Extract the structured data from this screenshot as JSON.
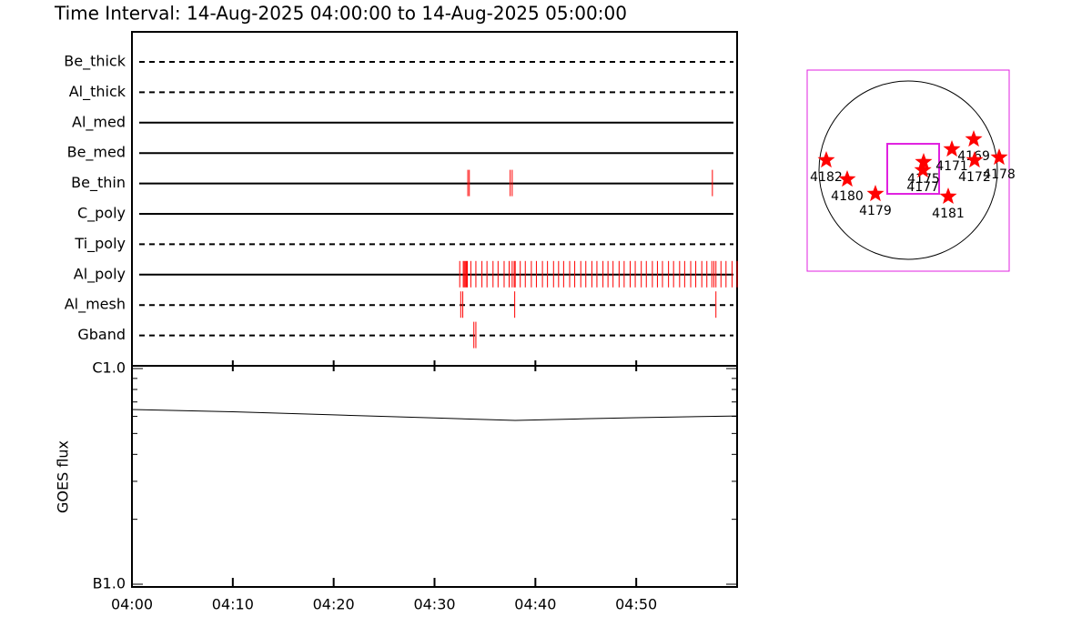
{
  "title": "Time Interval: 14-Aug-2025 04:00:00 to 14-Aug-2025 05:00:00",
  "chart_data": [
    {
      "type": "timeline",
      "categories": [
        "Be_thick",
        "Al_thick",
        "Al_med",
        "Be_med",
        "Be_thin",
        "C_poly",
        "Ti_poly",
        "Al_poly",
        "Al_mesh",
        "Gband"
      ],
      "line_styles": [
        "dashed",
        "dashed",
        "solid",
        "solid",
        "solid",
        "solid",
        "dashed",
        "solid",
        "dashed",
        "dashed"
      ],
      "color": "#ff0000",
      "xlim": [
        0,
        60
      ],
      "events": [
        [],
        [],
        [],
        [],
        [
          33.3,
          33.45,
          37.5,
          37.7,
          57.55
        ],
        [],
        [],
        [
          32.5,
          32.85,
          32.95,
          33.05,
          33.15,
          33.25,
          33.6,
          34.1,
          34.7,
          35.2,
          35.8,
          36.3,
          36.9,
          37.4,
          37.7,
          37.9,
          38.0,
          38.5,
          39.0,
          39.6,
          40.1,
          40.7,
          41.2,
          41.8,
          42.3,
          42.8,
          43.4,
          43.9,
          44.5,
          45.0,
          45.6,
          46.1,
          46.7,
          47.2,
          47.7,
          48.3,
          48.8,
          49.4,
          49.9,
          50.5,
          51.0,
          51.6,
          52.1,
          52.6,
          53.2,
          53.7,
          54.3,
          54.8,
          55.4,
          55.9,
          56.5,
          57.0,
          57.5,
          57.7,
          57.9,
          58.4,
          58.9,
          59.5,
          60.0
        ],
        [
          32.6,
          32.8,
          37.95,
          57.9
        ],
        [
          33.9,
          34.1
        ]
      ]
    },
    {
      "type": "line",
      "y_label": "GOES flux",
      "log_scale": true,
      "xlim": [
        0,
        60
      ],
      "xticks": [
        {
          "value": 0,
          "label": "04:00"
        },
        {
          "value": 10,
          "label": "04:10"
        },
        {
          "value": 20,
          "label": "04:20"
        },
        {
          "value": 30,
          "label": "04:30"
        },
        {
          "value": 40,
          "label": "04:40"
        },
        {
          "value": 50,
          "label": "04:50"
        }
      ],
      "ylim": [
        1e-07,
        1e-06
      ],
      "yticks": [
        {
          "value": 1e-07,
          "label": "B1.0"
        },
        {
          "value": 1e-06,
          "label": "C1.0"
        }
      ],
      "yminorticks": [
        2e-07,
        3e-07,
        4e-07,
        5e-07,
        6e-07,
        7e-07,
        8e-07,
        9e-07
      ],
      "color": "#000000",
      "x": [
        0,
        10,
        20,
        30,
        38,
        45,
        50,
        60
      ],
      "values": [
        6.46e-07,
        6.3e-07,
        6.1e-07,
        5.9e-07,
        5.75e-07,
        5.85e-07,
        5.92e-07,
        6.03e-07
      ]
    },
    {
      "type": "map",
      "xlim": [
        -1100,
        1100
      ],
      "ylim": [
        -1100,
        1100
      ],
      "color": "#ff0000",
      "fov": {
        "x": [
          -228,
          337
        ],
        "y": [
          -253,
          292
        ]
      },
      "labels": [
        "4182",
        "4180",
        "4179",
        "4175",
        "4177",
        "4171",
        "4169",
        "4172",
        "4178",
        "4181"
      ],
      "x": [
        -892,
        -664,
        -357,
        168,
        160,
        476,
        714,
        723,
        991,
        436
      ],
      "y": [
        114,
        -94,
        -253,
        94,
        5,
        233,
        342,
        114,
        144,
        -282
      ]
    }
  ]
}
